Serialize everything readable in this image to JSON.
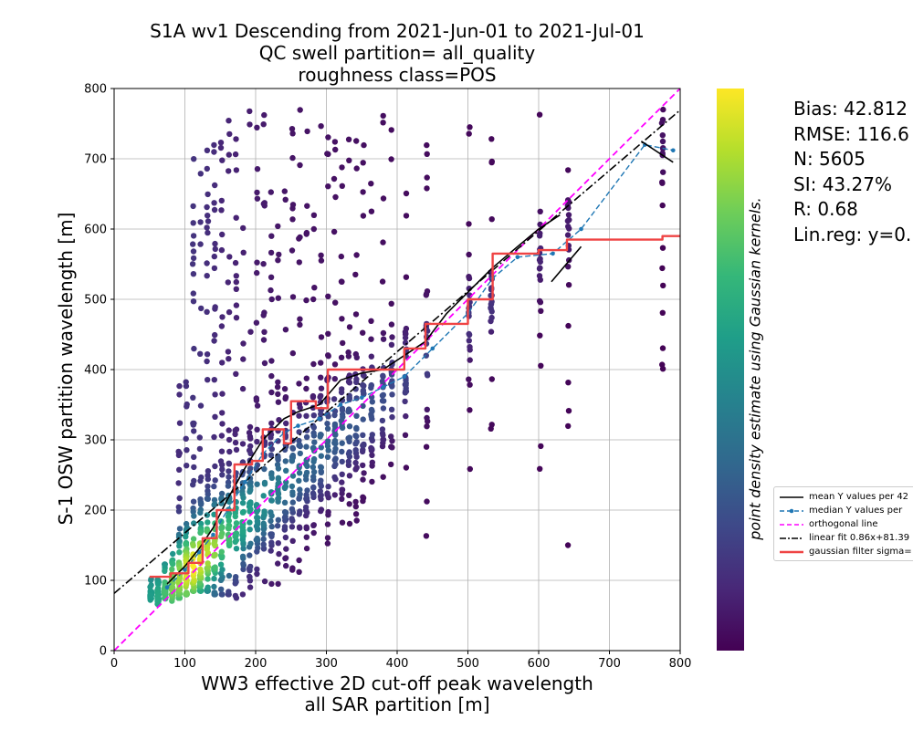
{
  "title_lines": [
    "S1A wv1 Descending from 2021-Jun-01 to 2021-Jul-01",
    "QC swell partition= all_quality",
    "roughness class=POS"
  ],
  "stats": [
    "Bias: 42.812",
    "RMSE: 116.6",
    "N: 5605",
    "SI: 43.27%",
    "R: 0.68",
    "Lin.reg: y=0."
  ],
  "colorbar_label": "point density estimate using Gaussian kernels.",
  "legend": [
    {
      "label": "mean Y values per 42",
      "color": "#000000",
      "style": "solid"
    },
    {
      "label": "median Y values per",
      "color": "#1f77b4",
      "style": "dashed-marker"
    },
    {
      "label": "orthogonal line",
      "color": "#ff00ff",
      "style": "dashed"
    },
    {
      "label": "linear fit 0.86x+81.39",
      "color": "#000000",
      "style": "dashdot"
    },
    {
      "label": "gaussian filter sigma=",
      "color": "#ef4444",
      "style": "thick"
    }
  ],
  "chart_data": {
    "type": "scatter",
    "xlabel": "WW3 effective 2D cut-off peak wavelength\nall SAR partition [m]",
    "ylabel": "S-1 OSW partition wavelength [m]",
    "xlim": [
      0,
      800
    ],
    "ylim": [
      0,
      800
    ],
    "xticks": [
      0,
      100,
      200,
      300,
      400,
      500,
      600,
      700,
      800
    ],
    "yticks": [
      0,
      100,
      200,
      300,
      400,
      500,
      600,
      700,
      800
    ],
    "grid": true,
    "legend_position": "right, outside plot",
    "colormap": "viridis",
    "scatter_columns": [
      {
        "x": 52,
        "ymin": 68,
        "ymax": 105,
        "d": 0.55
      },
      {
        "x": 62,
        "ymin": 65,
        "ymax": 110,
        "d": 0.6
      },
      {
        "x": 72,
        "ymin": 65,
        "ymax": 125,
        "d": 0.7
      },
      {
        "x": 82,
        "ymin": 70,
        "ymax": 140,
        "d": 0.8
      },
      {
        "x": 92,
        "ymin": 75,
        "ymax": 390,
        "d": 0.85
      },
      {
        "x": 102,
        "ymin": 80,
        "ymax": 410,
        "d": 0.95
      },
      {
        "x": 112,
        "ymin": 85,
        "ymax": 720,
        "d": 1.0
      },
      {
        "x": 122,
        "ymin": 85,
        "ymax": 710,
        "d": 0.95
      },
      {
        "x": 132,
        "ymin": 85,
        "ymax": 720,
        "d": 0.9
      },
      {
        "x": 142,
        "ymin": 80,
        "ymax": 720,
        "d": 0.85
      },
      {
        "x": 152,
        "ymin": 80,
        "ymax": 730,
        "d": 0.75
      },
      {
        "x": 162,
        "ymin": 80,
        "ymax": 770,
        "d": 0.7
      },
      {
        "x": 172,
        "ymin": 75,
        "ymax": 770,
        "d": 0.65
      },
      {
        "x": 182,
        "ymin": 80,
        "ymax": 640,
        "d": 0.6
      },
      {
        "x": 192,
        "ymin": 85,
        "ymax": 770,
        "d": 0.55
      },
      {
        "x": 202,
        "ymin": 90,
        "ymax": 770,
        "d": 0.5
      },
      {
        "x": 212,
        "ymin": 90,
        "ymax": 765,
        "d": 0.5
      },
      {
        "x": 222,
        "ymin": 95,
        "ymax": 770,
        "d": 0.45
      },
      {
        "x": 232,
        "ymin": 95,
        "ymax": 765,
        "d": 0.42
      },
      {
        "x": 242,
        "ymin": 100,
        "ymax": 770,
        "d": 0.4
      },
      {
        "x": 252,
        "ymin": 100,
        "ymax": 770,
        "d": 0.38
      },
      {
        "x": 262,
        "ymin": 105,
        "ymax": 770,
        "d": 0.36
      },
      {
        "x": 272,
        "ymin": 110,
        "ymax": 770,
        "d": 0.34
      },
      {
        "x": 282,
        "ymin": 110,
        "ymax": 770,
        "d": 0.34
      },
      {
        "x": 292,
        "ymin": 115,
        "ymax": 770,
        "d": 0.34
      },
      {
        "x": 302,
        "ymin": 130,
        "ymax": 770,
        "d": 0.32
      },
      {
        "x": 312,
        "ymin": 150,
        "ymax": 770,
        "d": 0.3
      },
      {
        "x": 322,
        "ymin": 150,
        "ymax": 770,
        "d": 0.3
      },
      {
        "x": 332,
        "ymin": 160,
        "ymax": 770,
        "d": 0.28
      },
      {
        "x": 342,
        "ymin": 180,
        "ymax": 770,
        "d": 0.28
      },
      {
        "x": 352,
        "ymin": 190,
        "ymax": 770,
        "d": 0.26
      },
      {
        "x": 364,
        "ymin": 100,
        "ymax": 795,
        "d": 0.26
      },
      {
        "x": 380,
        "ymin": 220,
        "ymax": 770,
        "d": 0.24
      },
      {
        "x": 392,
        "ymin": 240,
        "ymax": 770,
        "d": 0.22
      },
      {
        "x": 412,
        "ymin": 130,
        "ymax": 770,
        "d": 0.2
      },
      {
        "x": 442,
        "ymin": 130,
        "ymax": 770,
        "d": 0.2
      },
      {
        "x": 502,
        "ymin": 240,
        "ymax": 770,
        "d": 0.15
      },
      {
        "x": 533,
        "ymin": 310,
        "ymax": 770,
        "d": 0.15
      },
      {
        "x": 602,
        "ymin": 220,
        "ymax": 770,
        "d": 0.1
      },
      {
        "x": 642,
        "ymin": 90,
        "ymax": 770,
        "d": 0.08
      },
      {
        "x": 775,
        "ymin": 365,
        "ymax": 770,
        "d": 0.05
      }
    ],
    "series": [
      {
        "name": "mean Y values per 42",
        "x": [
          75,
          100,
          120,
          140,
          160,
          185,
          210,
          240,
          260,
          290,
          320,
          350,
          380,
          410,
          440,
          470,
          500,
          535,
          570,
          600,
          630
        ],
        "y": [
          95,
          120,
          145,
          175,
          215,
          260,
          300,
          330,
          340,
          350,
          385,
          395,
          400,
          420,
          440,
          480,
          510,
          545,
          575,
          600,
          620
        ]
      },
      {
        "name": "median Y values per",
        "x": [
          75,
          100,
          120,
          140,
          160,
          185,
          210,
          240,
          260,
          290,
          320,
          350,
          380,
          410,
          450,
          500,
          535,
          570,
          620,
          660,
          750,
          790
        ],
        "y": [
          90,
          115,
          140,
          165,
          200,
          240,
          280,
          310,
          320,
          330,
          350,
          360,
          375,
          390,
          430,
          480,
          530,
          560,
          565,
          600,
          720,
          712
        ]
      },
      {
        "name": "orthogonal line",
        "x": [
          0,
          800
        ],
        "y": [
          0,
          800
        ]
      },
      {
        "name": "linear fit 0.86x+81.39",
        "x": [
          0,
          800
        ],
        "y": [
          81.39,
          769.39
        ]
      },
      {
        "name": "gaussian filter sigma=",
        "x": [
          50,
          80,
          80,
          105,
          105,
          125,
          125,
          145,
          145,
          170,
          170,
          195,
          195,
          210,
          210,
          240,
          240,
          250,
          250,
          285,
          285,
          302,
          302,
          340,
          340,
          380,
          380,
          410,
          410,
          440,
          440,
          500,
          500,
          535,
          535,
          600,
          600,
          640,
          640,
          775,
          775,
          800
        ],
        "y": [
          105,
          105,
          110,
          110,
          125,
          125,
          160,
          160,
          200,
          200,
          265,
          265,
          270,
          270,
          315,
          315,
          295,
          295,
          355,
          355,
          345,
          345,
          400,
          400,
          400,
          400,
          400,
          400,
          430,
          430,
          465,
          465,
          500,
          500,
          565,
          565,
          570,
          570,
          585,
          585,
          590,
          590
        ]
      }
    ],
    "extra_segments": [
      {
        "x": [
          618,
          660
        ],
        "y": [
          525,
          575
        ]
      },
      {
        "x": [
          745,
          790
        ],
        "y": [
          725,
          695
        ]
      }
    ]
  }
}
